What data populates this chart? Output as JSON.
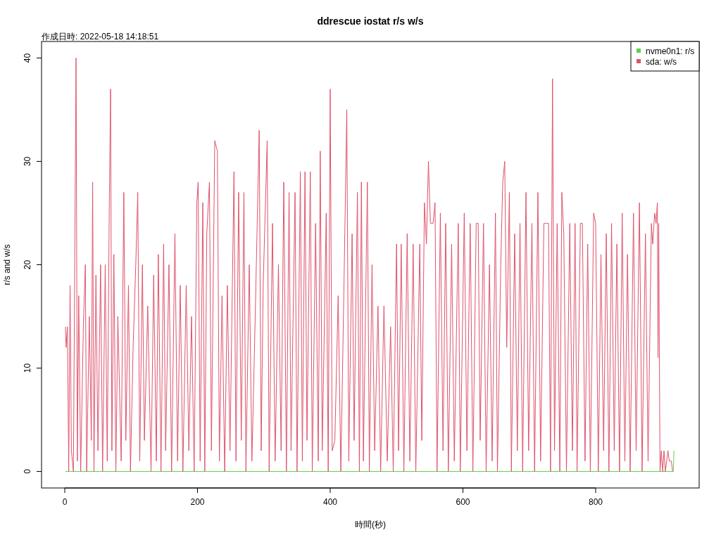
{
  "chart_data": {
    "type": "line",
    "title": "ddrescue iostat r/s w/s",
    "subtitle": "作成日時: 2022-05-18 14:18:51",
    "xlabel": "時間(秒)",
    "ylabel": "r/s and w/s",
    "xlim": [
      -35,
      956
    ],
    "ylim": [
      -1.6,
      41.6
    ],
    "xticks": [
      0,
      200,
      400,
      600,
      800
    ],
    "yticks": [
      0,
      10,
      20,
      30,
      40
    ],
    "legend": "top right",
    "series": [
      {
        "name": "nvme0n1: r/s",
        "color": "#61d04f",
        "x": [
          1,
          917,
          918
        ],
        "values": [
          0,
          0,
          2
        ]
      },
      {
        "name": "sda: w/s",
        "color": "#df536b",
        "x": [
          1,
          2,
          4,
          6,
          8,
          10,
          13,
          17,
          19,
          21,
          24,
          28,
          31,
          33,
          37,
          40,
          42,
          44,
          47,
          50,
          54,
          57,
          61,
          64,
          67,
          69,
          71,
          74,
          77,
          80,
          85,
          89,
          92,
          96,
          99,
          103,
          107,
          110,
          113,
          117,
          120,
          125,
          130,
          134,
          138,
          141,
          145,
          149,
          152,
          157,
          161,
          166,
          170,
          174,
          178,
          183,
          187,
          191,
          195,
          199,
          201,
          204,
          208,
          211,
          214,
          218,
          221,
          226,
          230,
          233,
          237,
          241,
          245,
          249,
          255,
          258,
          262,
          266,
          270,
          273,
          278,
          282,
          287,
          293,
          296,
          299,
          305,
          308,
          313,
          317,
          322,
          326,
          330,
          334,
          338,
          341,
          347,
          350,
          355,
          358,
          362,
          365,
          370,
          373,
          378,
          382,
          385,
          388,
          394,
          397,
          400,
          403,
          407,
          412,
          416,
          421,
          425,
          428,
          433,
          436,
          441,
          444,
          447,
          450,
          456,
          459,
          463,
          467,
          472,
          476,
          481,
          486,
          491,
          495,
          500,
          503,
          507,
          511,
          516,
          520,
          525,
          529,
          535,
          538,
          542,
          545,
          548,
          551,
          555,
          558,
          561,
          566,
          570,
          574,
          578,
          583,
          587,
          593,
          596,
          602,
          606,
          611,
          615,
          620,
          623,
          626,
          631,
          635,
          640,
          644,
          649,
          652,
          657,
          660,
          663,
          666,
          670,
          673,
          678,
          682,
          686,
          690,
          695,
          699,
          704,
          708,
          713,
          717,
          722,
          725,
          729,
          732,
          735,
          738,
          742,
          746,
          749,
          752,
          756,
          761,
          765,
          769,
          772,
          777,
          780,
          784,
          788,
          792,
          797,
          800,
          804,
          808,
          812,
          816,
          820,
          824,
          828,
          832,
          836,
          840,
          844,
          848,
          852,
          857,
          861,
          866,
          870,
          875,
          879,
          884,
          886,
          889,
          891,
          893,
          894,
          895,
          897,
          899,
          901,
          903,
          905,
          909,
          911,
          914,
          916
        ],
        "values": [
          14,
          12,
          14,
          0,
          18,
          2,
          0,
          40,
          1,
          17,
          0,
          14,
          20,
          0,
          15,
          3,
          28,
          0,
          19,
          2,
          20,
          0,
          20,
          1,
          25,
          37,
          2,
          21,
          0,
          15,
          1,
          27,
          3,
          18,
          0,
          12,
          20,
          27,
          1,
          20,
          3,
          16,
          0,
          19,
          1,
          21,
          0,
          22,
          2,
          20,
          0,
          23,
          1,
          18,
          0,
          18,
          2,
          15,
          0,
          26,
          28,
          1,
          26,
          0,
          23,
          28,
          2,
          32,
          31,
          1,
          17,
          0,
          18,
          2,
          29,
          1,
          27,
          3,
          27,
          0,
          20,
          1,
          15,
          33,
          2,
          18,
          32,
          0,
          24,
          1,
          20,
          2,
          28,
          0,
          27,
          2,
          27,
          0,
          29,
          1,
          29,
          3,
          29,
          0,
          24,
          1,
          31,
          2,
          25,
          0,
          37,
          2,
          3,
          17,
          0,
          19,
          35,
          1,
          23,
          3,
          27,
          0,
          28,
          1,
          28,
          0,
          20,
          2,
          16,
          0,
          16,
          1,
          14,
          0,
          22,
          2,
          22,
          0,
          23,
          1,
          22,
          0,
          22,
          3,
          26,
          22,
          30,
          24,
          24,
          26,
          0,
          25,
          2,
          24,
          0,
          22,
          1,
          24,
          0,
          25,
          2,
          24,
          0,
          24,
          24,
          3,
          24,
          0,
          20,
          1,
          25,
          0,
          20,
          28,
          30,
          12,
          27,
          0,
          23,
          2,
          24,
          0,
          27,
          2,
          24,
          0,
          27,
          1,
          24,
          24,
          24,
          0,
          38,
          2,
          24,
          0,
          27,
          23,
          0,
          24,
          2,
          24,
          0,
          24,
          24,
          1,
          22,
          0,
          25,
          24,
          0,
          21,
          2,
          23,
          0,
          24,
          2,
          22,
          0,
          25,
          1,
          21,
          0,
          25,
          2,
          26,
          0,
          23,
          1,
          24,
          22,
          25,
          24,
          26,
          11,
          24,
          0,
          2,
          0,
          2,
          0,
          2,
          1,
          1,
          0
        ]
      }
    ]
  }
}
